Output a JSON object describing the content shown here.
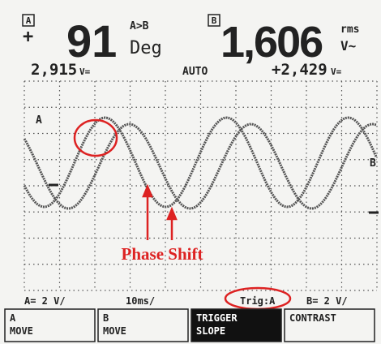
{
  "readings": {
    "a": {
      "channel": "A",
      "sign": "+",
      "value": "91",
      "relation": "A>B",
      "unit": "Deg"
    },
    "b": {
      "channel": "B",
      "value": "1,606",
      "mode": "rms",
      "unit": "V~"
    }
  },
  "sub": {
    "a_dc": "2,915",
    "a_dc_unit": "V=",
    "mode": "AUTO",
    "b_dc": "+2,429",
    "b_dc_unit": "V="
  },
  "traces": {
    "a": "A",
    "b": "B"
  },
  "annotation": "Phase Shift",
  "status": {
    "a_scale": "A= 2 V/",
    "time": "10ms/",
    "trigger": "Trig:A",
    "b_scale": "B= 2 V/"
  },
  "softkeys": [
    {
      "top": "A",
      "bottom": "MOVE"
    },
    {
      "top": "B",
      "bottom": "MOVE"
    },
    {
      "top": "TRIGGER",
      "bottom": "SLOPE"
    },
    {
      "top": "CONTRAST",
      "bottom": ""
    }
  ]
}
